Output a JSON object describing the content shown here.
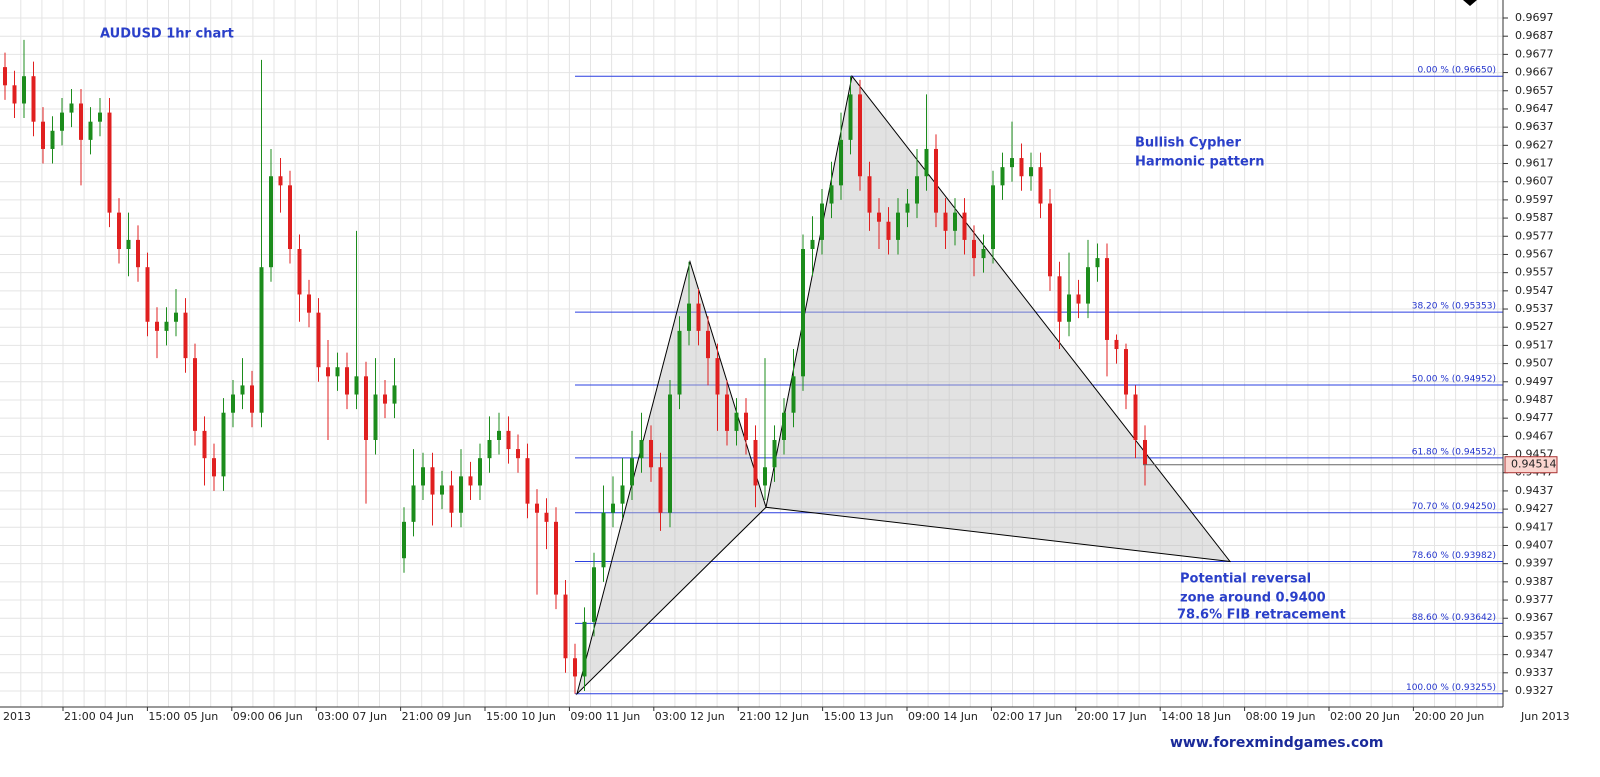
{
  "chart_data": {
    "type": "candlestick",
    "title": "AUDUSD 1hr chart",
    "annotations": [
      "Bullish Cypher",
      "Harmonic pattern",
      "Potential reversal",
      "zone around 0.9400",
      "78.6% FIB retracement"
    ],
    "footer": "www.forexmindgames.com",
    "up_color": "#1c8c1c",
    "down_color": "#e02020",
    "grid": true,
    "ylim": [
      0.93182,
      0.97069
    ],
    "yticks": [
      0.9697,
      0.9687,
      0.9677,
      0.9667,
      0.9657,
      0.9647,
      0.9637,
      0.9627,
      0.9617,
      0.9607,
      0.9597,
      0.9587,
      0.9577,
      0.9567,
      0.9557,
      0.9547,
      0.9537,
      0.9527,
      0.9517,
      0.9507,
      0.9497,
      0.9487,
      0.9477,
      0.9467,
      0.9457,
      0.9447,
      0.9437,
      0.9427,
      0.9417,
      0.9407,
      0.9397,
      0.9387,
      0.9377,
      0.9367,
      0.9357,
      0.9347,
      0.9337,
      0.9327
    ],
    "xlabels": [
      "2013",
      "21:00 04 Jun",
      "15:00 05 Jun",
      "09:00 06 Jun",
      "03:00 07 Jun",
      "21:00 09 Jun",
      "15:00 10 Jun",
      "09:00 11 Jun",
      "03:00 12 Jun",
      "21:00 12 Jun",
      "15:00 13 Jun",
      "09:00 14 Jun",
      "02:00 17 Jun",
      "20:00 17 Jun",
      "14:00 18 Jun",
      "08:00 19 Jun",
      "02:00 20 Jun",
      "20:00 20 Jun",
      "Jun 2013"
    ],
    "last_price": 0.94514,
    "fib_levels": [
      {
        "value": 0.9665,
        "label": "0.00 % (0.96650)"
      },
      {
        "value": 0.95353,
        "label": "38.20 % (0.95353)"
      },
      {
        "value": 0.94952,
        "label": "50.00 % (0.94952)"
      },
      {
        "value": 0.94552,
        "label": "61.80 % (0.94552)"
      },
      {
        "value": 0.9425,
        "label": "70.70 % (0.94250)"
      },
      {
        "value": 0.93982,
        "label": "78.60 % (0.93982)"
      },
      {
        "value": 0.93642,
        "label": "88.60 % (0.93642)"
      },
      {
        "value": 0.93255,
        "label": "100.00 % (0.93255)"
      }
    ],
    "pattern": [
      0.93255,
      0.9563,
      0.9428,
      0.9665,
      0.93982
    ],
    "candles": [
      [
        0.967,
        0.9678,
        0.9652,
        0.966
      ],
      [
        0.966,
        0.9668,
        0.9642,
        0.965
      ],
      [
        0.965,
        0.9685,
        0.9642,
        0.9665
      ],
      [
        0.9665,
        0.9673,
        0.9632,
        0.964
      ],
      [
        0.964,
        0.9648,
        0.9617,
        0.9625
      ],
      [
        0.9625,
        0.9643,
        0.9617,
        0.9635
      ],
      [
        0.9635,
        0.9653,
        0.9627,
        0.9645
      ],
      [
        0.9645,
        0.9658,
        0.9637,
        0.965
      ],
      [
        0.965,
        0.9658,
        0.9605,
        0.963
      ],
      [
        0.963,
        0.9648,
        0.9622,
        0.964
      ],
      [
        0.964,
        0.9653,
        0.9632,
        0.9645
      ],
      [
        0.9645,
        0.9653,
        0.9582,
        0.959
      ],
      [
        0.959,
        0.9598,
        0.9562,
        0.957
      ],
      [
        0.957,
        0.959,
        0.9555,
        0.9575
      ],
      [
        0.9575,
        0.9583,
        0.9552,
        0.956
      ],
      [
        0.956,
        0.9568,
        0.9522,
        0.953
      ],
      [
        0.953,
        0.9538,
        0.951,
        0.9525
      ],
      [
        0.9525,
        0.9538,
        0.9517,
        0.953
      ],
      [
        0.953,
        0.9548,
        0.9522,
        0.9535
      ],
      [
        0.9535,
        0.9543,
        0.9502,
        0.951
      ],
      [
        0.951,
        0.9518,
        0.9462,
        0.947
      ],
      [
        0.947,
        0.9478,
        0.944,
        0.9455
      ],
      [
        0.9455,
        0.9463,
        0.9437,
        0.9445
      ],
      [
        0.9445,
        0.9488,
        0.9437,
        0.948
      ],
      [
        0.948,
        0.9498,
        0.9472,
        0.949
      ],
      [
        0.949,
        0.951,
        0.9482,
        0.9495
      ],
      [
        0.9495,
        0.9503,
        0.9472,
        0.948
      ],
      [
        0.948,
        0.9674,
        0.9472,
        0.956
      ],
      [
        0.956,
        0.9625,
        0.9552,
        0.961
      ],
      [
        0.961,
        0.962,
        0.959,
        0.9605
      ],
      [
        0.9605,
        0.9613,
        0.9562,
        0.957
      ],
      [
        0.957,
        0.9578,
        0.953,
        0.9545
      ],
      [
        0.9545,
        0.9553,
        0.9527,
        0.9535
      ],
      [
        0.9535,
        0.9543,
        0.9497,
        0.9505
      ],
      [
        0.9505,
        0.952,
        0.9465,
        0.95
      ],
      [
        0.95,
        0.9513,
        0.9492,
        0.9505
      ],
      [
        0.9505,
        0.9513,
        0.9482,
        0.949
      ],
      [
        0.949,
        0.958,
        0.9482,
        0.95
      ],
      [
        0.95,
        0.9508,
        0.943,
        0.9465
      ],
      [
        0.9465,
        0.951,
        0.9457,
        0.949
      ],
      [
        0.949,
        0.9498,
        0.9477,
        0.9485
      ],
      [
        0.9485,
        0.951,
        0.9477,
        0.9495
      ],
      [
        0.94,
        0.9428,
        0.9392,
        0.942
      ],
      [
        0.942,
        0.946,
        0.9412,
        0.944
      ],
      [
        0.944,
        0.9458,
        0.9432,
        0.945
      ],
      [
        0.945,
        0.9458,
        0.9418,
        0.9435
      ],
      [
        0.9435,
        0.9448,
        0.9427,
        0.944
      ],
      [
        0.944,
        0.9448,
        0.9417,
        0.9425
      ],
      [
        0.9425,
        0.946,
        0.9417,
        0.9445
      ],
      [
        0.9445,
        0.9453,
        0.9432,
        0.944
      ],
      [
        0.944,
        0.9463,
        0.9432,
        0.9455
      ],
      [
        0.9455,
        0.9478,
        0.9447,
        0.9465
      ],
      [
        0.9465,
        0.948,
        0.9457,
        0.947
      ],
      [
        0.947,
        0.9478,
        0.9452,
        0.946
      ],
      [
        0.946,
        0.9468,
        0.9447,
        0.9455
      ],
      [
        0.9455,
        0.9463,
        0.9422,
        0.943
      ],
      [
        0.943,
        0.9438,
        0.938,
        0.9425
      ],
      [
        0.9425,
        0.9433,
        0.9405,
        0.942
      ],
      [
        0.942,
        0.9428,
        0.9372,
        0.938
      ],
      [
        0.938,
        0.9388,
        0.9337,
        0.9345
      ],
      [
        0.9345,
        0.9353,
        0.93255,
        0.9335
      ],
      [
        0.9335,
        0.9373,
        0.9327,
        0.9365
      ],
      [
        0.9365,
        0.9403,
        0.9357,
        0.9395
      ],
      [
        0.9395,
        0.944,
        0.9387,
        0.9425
      ],
      [
        0.9425,
        0.9445,
        0.9417,
        0.943
      ],
      [
        0.943,
        0.9455,
        0.9422,
        0.944
      ],
      [
        0.944,
        0.947,
        0.9432,
        0.9455
      ],
      [
        0.9455,
        0.948,
        0.9447,
        0.9465
      ],
      [
        0.9465,
        0.9473,
        0.9442,
        0.945
      ],
      [
        0.945,
        0.9458,
        0.9415,
        0.9425
      ],
      [
        0.9425,
        0.9498,
        0.9417,
        0.949
      ],
      [
        0.949,
        0.9533,
        0.9482,
        0.9525
      ],
      [
        0.9525,
        0.9563,
        0.9517,
        0.954
      ],
      [
        0.954,
        0.9548,
        0.9517,
        0.9525
      ],
      [
        0.9525,
        0.9533,
        0.9495,
        0.951
      ],
      [
        0.951,
        0.9518,
        0.947,
        0.949
      ],
      [
        0.949,
        0.9498,
        0.9462,
        0.947
      ],
      [
        0.947,
        0.9488,
        0.9462,
        0.948
      ],
      [
        0.948,
        0.9488,
        0.9457,
        0.9465
      ],
      [
        0.9465,
        0.9473,
        0.9428,
        0.944
      ],
      [
        0.944,
        0.951,
        0.9432,
        0.945
      ],
      [
        0.945,
        0.9473,
        0.9442,
        0.9465
      ],
      [
        0.9465,
        0.9488,
        0.9457,
        0.948
      ],
      [
        0.948,
        0.9515,
        0.9472,
        0.95
      ],
      [
        0.95,
        0.9578,
        0.9492,
        0.957
      ],
      [
        0.957,
        0.9588,
        0.9555,
        0.9575
      ],
      [
        0.9575,
        0.9603,
        0.9567,
        0.9595
      ],
      [
        0.9595,
        0.9618,
        0.9587,
        0.9605
      ],
      [
        0.9605,
        0.9645,
        0.9597,
        0.963
      ],
      [
        0.963,
        0.9665,
        0.9622,
        0.9655
      ],
      [
        0.9655,
        0.9663,
        0.9602,
        0.961
      ],
      [
        0.961,
        0.9618,
        0.958,
        0.959
      ],
      [
        0.959,
        0.9598,
        0.957,
        0.9585
      ],
      [
        0.9585,
        0.9593,
        0.9567,
        0.9575
      ],
      [
        0.9575,
        0.9598,
        0.9567,
        0.959
      ],
      [
        0.959,
        0.9603,
        0.9582,
        0.9595
      ],
      [
        0.9595,
        0.9625,
        0.9587,
        0.961
      ],
      [
        0.961,
        0.9655,
        0.9602,
        0.9625
      ],
      [
        0.9625,
        0.9633,
        0.9582,
        0.959
      ],
      [
        0.959,
        0.9598,
        0.957,
        0.958
      ],
      [
        0.958,
        0.9598,
        0.9572,
        0.959
      ],
      [
        0.959,
        0.9598,
        0.9567,
        0.9575
      ],
      [
        0.9575,
        0.9583,
        0.9555,
        0.9565
      ],
      [
        0.9565,
        0.9578,
        0.9557,
        0.957
      ],
      [
        0.957,
        0.9613,
        0.9562,
        0.9605
      ],
      [
        0.9605,
        0.9623,
        0.9597,
        0.9615
      ],
      [
        0.9615,
        0.964,
        0.9607,
        0.962
      ],
      [
        0.962,
        0.9628,
        0.9602,
        0.961
      ],
      [
        0.961,
        0.9623,
        0.9602,
        0.9615
      ],
      [
        0.9615,
        0.9623,
        0.9587,
        0.9595
      ],
      [
        0.9595,
        0.9603,
        0.9547,
        0.9555
      ],
      [
        0.9555,
        0.9563,
        0.9515,
        0.953
      ],
      [
        0.953,
        0.9568,
        0.9522,
        0.9545
      ],
      [
        0.9545,
        0.9553,
        0.9532,
        0.954
      ],
      [
        0.954,
        0.9575,
        0.9532,
        0.956
      ],
      [
        0.956,
        0.9573,
        0.9552,
        0.9565
      ],
      [
        0.9565,
        0.9573,
        0.95,
        0.952
      ],
      [
        0.952,
        0.9523,
        0.9507,
        0.9515
      ],
      [
        0.9515,
        0.9518,
        0.9482,
        0.949
      ],
      [
        0.949,
        0.9495,
        0.9455,
        0.9465
      ],
      [
        0.9465,
        0.9473,
        0.944,
        0.94514
      ]
    ]
  }
}
